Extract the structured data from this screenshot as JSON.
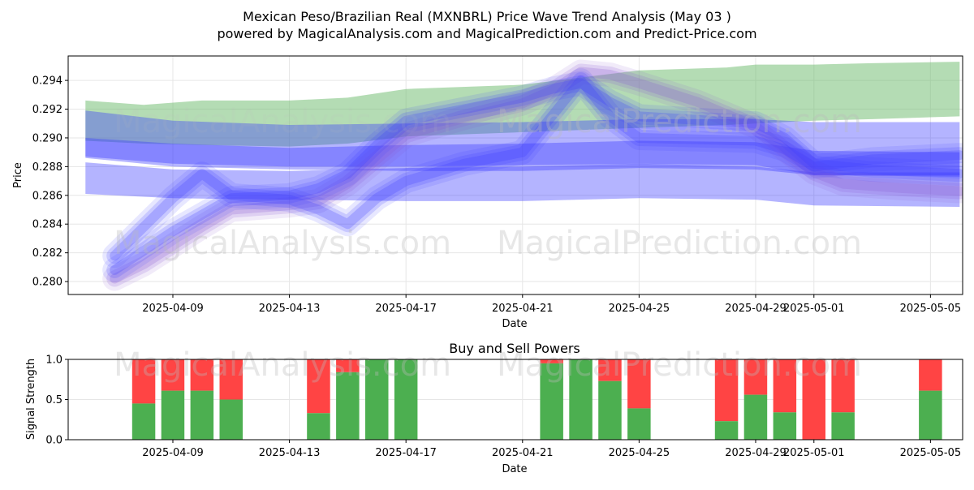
{
  "title_line1": "Mexican Peso/Brazilian Real (MXNBRL) Price Wave Trend Analysis (May 03 )",
  "title_line2": "powered by MagicalAnalysis.com and MagicalPrediction.com and Predict-Price.com",
  "watermark_left": "MagicalAnalysis.com",
  "watermark_right": "MagicalPrediction.com",
  "colors": {
    "green_band": "#6ab96a",
    "blue_band": "#3b3bff",
    "wave_purple": "#8a5ad0",
    "buy": "#4caf50",
    "sell": "#ff4444",
    "grid": "#e6e6e6"
  },
  "chart_data": [
    {
      "type": "area",
      "name": "price-wave-trend",
      "xlabel": "Date",
      "ylabel": "Price",
      "x_tick_labels": [
        "2025-04-09",
        "2025-04-13",
        "2025-04-17",
        "2025-04-21",
        "2025-04-25",
        "2025-04-29",
        "2025-05-01",
        "2025-05-05"
      ],
      "x_tick_days": [
        2,
        6,
        10,
        14,
        18,
        22,
        24,
        28
      ],
      "x_range": [
        "2025-04-06",
        "2025-05-06"
      ],
      "y_tick_labels": [
        "0.280",
        "0.282",
        "0.284",
        "0.286",
        "0.288",
        "0.290",
        "0.292",
        "0.294"
      ],
      "ylim": [
        0.2791,
        0.2957
      ],
      "grid": true,
      "series": [
        {
          "style": "band",
          "color": "green_band",
          "x": [
            "2025-04-06",
            "2025-04-08",
            "2025-04-10",
            "2025-04-13",
            "2025-04-15",
            "2025-04-17",
            "2025-04-21",
            "2025-04-25",
            "2025-04-28",
            "2025-04-29",
            "2025-05-01",
            "2025-05-03",
            "2025-05-06"
          ],
          "upper": [
            0.2926,
            0.2923,
            0.2926,
            0.2926,
            0.2928,
            0.2934,
            0.2937,
            0.2947,
            0.2949,
            0.2951,
            0.2951,
            0.2952,
            0.2953
          ],
          "lower": [
            0.2898,
            0.2896,
            0.2895,
            0.2894,
            0.2896,
            0.2901,
            0.2904,
            0.2907,
            0.2909,
            0.291,
            0.2912,
            0.2913,
            0.2915
          ]
        },
        {
          "style": "band",
          "color": "blue_band",
          "x": [
            "2025-04-06",
            "2025-04-09",
            "2025-04-13",
            "2025-04-17",
            "2025-04-21",
            "2025-04-25",
            "2025-04-29",
            "2025-05-01",
            "2025-05-06"
          ],
          "upper": [
            0.2919,
            0.2912,
            0.2909,
            0.291,
            0.2911,
            0.2913,
            0.2913,
            0.2911,
            0.2911
          ],
          "lower": [
            0.2886,
            0.288,
            0.2878,
            0.2877,
            0.2877,
            0.2879,
            0.2878,
            0.2874,
            0.2874
          ]
        },
        {
          "style": "band",
          "color": "blue_band",
          "x": [
            "2025-04-06",
            "2025-04-09",
            "2025-04-13",
            "2025-04-17",
            "2025-04-21",
            "2025-04-25",
            "2025-04-29",
            "2025-05-01",
            "2025-05-06"
          ],
          "upper": [
            0.29,
            0.2896,
            0.2893,
            0.2895,
            0.2896,
            0.2898,
            0.2897,
            0.2891,
            0.289
          ],
          "lower": [
            0.2887,
            0.2882,
            0.288,
            0.288,
            0.2881,
            0.2882,
            0.2881,
            0.2874,
            0.2873
          ]
        },
        {
          "style": "band",
          "color": "blue_band",
          "x": [
            "2025-04-06",
            "2025-04-09",
            "2025-04-13",
            "2025-04-17",
            "2025-04-21",
            "2025-04-25",
            "2025-04-29",
            "2025-05-01",
            "2025-05-06"
          ],
          "upper": [
            0.2883,
            0.2878,
            0.2877,
            0.2879,
            0.288,
            0.2882,
            0.288,
            0.2876,
            0.2876
          ],
          "lower": [
            0.2861,
            0.2858,
            0.2857,
            0.2856,
            0.2856,
            0.2858,
            0.2857,
            0.2853,
            0.2852
          ]
        },
        {
          "style": "wave",
          "color": "wave_purple",
          "x": [
            "2025-04-07",
            "2025-04-08",
            "2025-04-09",
            "2025-04-10",
            "2025-04-11",
            "2025-04-13",
            "2025-04-14",
            "2025-04-15",
            "2025-04-16",
            "2025-04-17",
            "2025-04-19",
            "2025-04-21",
            "2025-04-22",
            "2025-04-23",
            "2025-04-24",
            "2025-04-25",
            "2025-04-27",
            "2025-04-29",
            "2025-04-30",
            "2025-05-01",
            "2025-05-02",
            "2025-05-04",
            "2025-05-06"
          ],
          "y": [
            0.2802,
            0.2812,
            0.2825,
            0.2838,
            0.285,
            0.2853,
            0.2856,
            0.2868,
            0.2885,
            0.2902,
            0.2914,
            0.2924,
            0.2933,
            0.2946,
            0.2944,
            0.2938,
            0.2925,
            0.2908,
            0.2892,
            0.2876,
            0.2868,
            0.2865,
            0.2863
          ]
        },
        {
          "style": "wave",
          "color": "blue_band",
          "x": [
            "2025-04-07",
            "2025-04-09",
            "2025-04-10",
            "2025-04-11",
            "2025-04-13",
            "2025-04-14",
            "2025-04-15",
            "2025-04-16",
            "2025-04-17",
            "2025-04-19",
            "2025-04-21",
            "2025-04-23",
            "2025-04-24",
            "2025-04-25",
            "2025-04-29",
            "2025-04-30",
            "2025-05-01",
            "2025-05-03",
            "2025-05-06"
          ],
          "y": [
            0.2818,
            0.2858,
            0.2875,
            0.286,
            0.2857,
            0.285,
            0.284,
            0.2858,
            0.287,
            0.2882,
            0.289,
            0.294,
            0.2915,
            0.29,
            0.2898,
            0.2892,
            0.288,
            0.2885,
            0.2888
          ]
        },
        {
          "style": "wave",
          "color": "blue_band",
          "x": [
            "2025-04-07",
            "2025-04-09",
            "2025-04-11",
            "2025-04-13",
            "2025-04-14",
            "2025-04-15",
            "2025-04-16",
            "2025-04-17",
            "2025-04-19",
            "2025-04-21",
            "2025-04-22",
            "2025-04-23",
            "2025-04-24",
            "2025-04-25",
            "2025-04-29",
            "2025-04-30",
            "2025-05-01",
            "2025-05-03",
            "2025-05-06"
          ],
          "y": [
            0.2808,
            0.2835,
            0.2858,
            0.286,
            0.2865,
            0.2875,
            0.2895,
            0.2912,
            0.292,
            0.2928,
            0.2934,
            0.2938,
            0.2925,
            0.2915,
            0.291,
            0.29,
            0.2882,
            0.2878,
            0.2875
          ]
        }
      ]
    },
    {
      "type": "bar",
      "name": "buy-sell-powers",
      "title": "Buy and Sell Powers",
      "xlabel": "Date",
      "ylabel": "Signal Strength",
      "x_tick_labels": [
        "2025-04-09",
        "2025-04-13",
        "2025-04-17",
        "2025-04-21",
        "2025-04-25",
        "2025-04-29",
        "2025-05-01",
        "2025-05-05"
      ],
      "x_tick_days": [
        2,
        6,
        10,
        14,
        18,
        22,
        24,
        28
      ],
      "y_tick_labels": [
        "0.0",
        "0.5",
        "1.0"
      ],
      "ylim": [
        0,
        1
      ],
      "grid": true,
      "categories": [
        "2025-04-08",
        "2025-04-09",
        "2025-04-10",
        "2025-04-11",
        "2025-04-14",
        "2025-04-15",
        "2025-04-16",
        "2025-04-17",
        "2025-04-22",
        "2025-04-23",
        "2025-04-24",
        "2025-04-25",
        "2025-04-28",
        "2025-04-29",
        "2025-04-30",
        "2025-05-01",
        "2025-05-02",
        "2025-05-05"
      ],
      "category_days": [
        1,
        2,
        3,
        4,
        7,
        8,
        9,
        10,
        15,
        16,
        17,
        18,
        21,
        22,
        23,
        24,
        25,
        28
      ],
      "buy": [
        0.45,
        0.61,
        0.61,
        0.5,
        0.33,
        0.84,
        1.0,
        1.0,
        0.95,
        1.0,
        0.73,
        0.39,
        0.23,
        0.56,
        0.34,
        0.0,
        0.34,
        0.61
      ]
    }
  ]
}
